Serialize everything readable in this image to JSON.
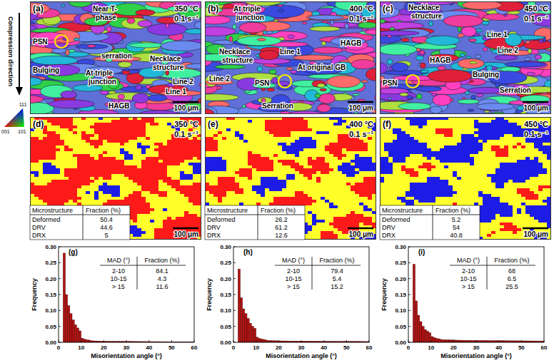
{
  "side_label": "Compression direction",
  "ipf_key": {
    "top": "111",
    "left": "001",
    "right": "101"
  },
  "orientation_maps": [
    {
      "letter": "(a)",
      "temperature": "350 °C",
      "strain_rate": "0.1 s⁻¹",
      "scale_bar": "100 μm",
      "annotations": [
        {
          "lines": [
            "Near T-",
            "phase"
          ]
        },
        {
          "lines": [
            "PSN"
          ]
        },
        {
          "lines": [
            "serration"
          ]
        },
        {
          "lines": [
            "Bulging"
          ]
        },
        {
          "lines": [
            "At triple",
            "junction"
          ]
        },
        {
          "lines": [
            "Necklace",
            "structure"
          ]
        },
        {
          "lines": [
            "Line 2"
          ]
        },
        {
          "lines": [
            "Line 1"
          ]
        },
        {
          "lines": [
            "HAGB"
          ]
        }
      ]
    },
    {
      "letter": "(b)",
      "temperature": "400 °C",
      "strain_rate": "0.1 s⁻¹",
      "scale_bar": "100 μm",
      "annotations": [
        {
          "lines": [
            "At triple",
            "junction"
          ]
        },
        {
          "lines": [
            "Necklace",
            "structure"
          ]
        },
        {
          "lines": [
            "Line 1"
          ]
        },
        {
          "lines": [
            "HAGB"
          ]
        },
        {
          "lines": [
            "Line 2"
          ]
        },
        {
          "lines": [
            "PSN"
          ]
        },
        {
          "lines": [
            "At original GB"
          ]
        },
        {
          "lines": [
            "Serration"
          ]
        }
      ]
    },
    {
      "letter": "(c)",
      "temperature": "450 °C",
      "strain_rate": "0.1 s⁻¹",
      "scale_bar": "100 μm",
      "annotations": [
        {
          "lines": [
            "Necklace",
            "structure"
          ]
        },
        {
          "lines": [
            "Line 1"
          ]
        },
        {
          "lines": [
            "Line 2"
          ]
        },
        {
          "lines": [
            "HAGB"
          ]
        },
        {
          "lines": [
            "Bulging"
          ]
        },
        {
          "lines": [
            "Serration"
          ]
        },
        {
          "lines": [
            "PSN"
          ]
        }
      ]
    }
  ],
  "phase_maps": [
    {
      "letter": "(d)",
      "temperature": "350 °C",
      "strain_rate": "0.1 s⁻¹",
      "scale_bar": "100 μm",
      "table": {
        "header": [
          "Microstructure",
          "Fraction (%)"
        ],
        "rows": [
          [
            "Deformed",
            50.4
          ],
          [
            "DRV",
            44.6
          ],
          [
            "DRX",
            5
          ]
        ]
      }
    },
    {
      "letter": "(e)",
      "temperature": "400 °C",
      "strain_rate": "0.1 s⁻¹",
      "scale_bar": "100 μm",
      "table": {
        "header": [
          "Microstructure",
          "Fraction (%)"
        ],
        "rows": [
          [
            "Deformed",
            26.2
          ],
          [
            "DRV",
            61.2
          ],
          [
            "DRX",
            12.6
          ]
        ]
      }
    },
    {
      "letter": "(f)",
      "temperature": "450 °C",
      "strain_rate": "0.1 s⁻¹",
      "scale_bar": "100 μm",
      "table": {
        "header": [
          "Microstructure",
          "Fraction (%)"
        ],
        "rows": [
          [
            "Deformed",
            5.2
          ],
          [
            "DRV",
            54
          ],
          [
            "DRX",
            40.8
          ]
        ]
      }
    }
  ],
  "chart_data": [
    {
      "type": "histogram",
      "title": "(g)",
      "x_label": "Misorientation angle (°)",
      "y_label": "Frequency",
      "color": "#b01212",
      "grid": false,
      "bins": [
        2,
        3,
        4,
        5,
        6,
        7,
        8,
        9,
        10,
        11,
        12,
        13,
        14,
        15,
        16,
        17,
        18,
        19,
        20,
        21,
        22,
        23,
        24,
        25,
        26,
        27,
        28,
        29,
        30,
        31,
        32,
        33,
        34,
        35,
        36,
        37,
        38,
        39,
        40,
        41,
        42,
        43,
        44,
        45,
        46,
        47,
        48,
        49,
        50,
        51,
        52,
        53,
        54,
        55,
        56,
        57,
        58,
        59,
        60
      ],
      "counts": [
        0.28,
        0.15,
        0.115,
        0.09,
        0.07,
        0.055,
        0.045,
        0.036,
        0.013,
        0.01,
        0.008,
        0.007,
        0.005,
        0.0045,
        0.0043,
        0.0041,
        0.0039,
        0.0037,
        0.0035,
        0.0034,
        0.0033,
        0.0032,
        0.0031,
        0.003,
        0.003,
        0.0029,
        0.0029,
        0.0028,
        0.0028,
        0.0027,
        0.0027,
        0.0026,
        0.0026,
        0.0025,
        0.0025,
        0.0024,
        0.0024,
        0.0023,
        0.0023,
        0.0022,
        0.0022,
        0.0021,
        0.0021,
        0.002,
        0.002,
        0.002,
        0.0019,
        0.0019,
        0.0019,
        0.0018,
        0.0018,
        0.0018,
        0.0017,
        0.0017,
        0.0016,
        0.0016,
        0.0015,
        0.0015
      ],
      "xlim": [
        0,
        60
      ],
      "ylim": [
        0,
        0.3
      ],
      "xticks": [
        0,
        10,
        20,
        30,
        40,
        50,
        60
      ],
      "yticks": [
        {
          "value": 0,
          "label": "0.00"
        },
        {
          "value": 0.05,
          "label": "0.05"
        },
        {
          "value": 0.1,
          "label": "0.10"
        },
        {
          "value": 0.15,
          "label": "0.15"
        },
        {
          "value": 0.2,
          "label": "0.20"
        },
        {
          "value": 0.25,
          "label": "0.25"
        },
        {
          "value": 0.3,
          "label": "0.30"
        }
      ],
      "table": {
        "header": [
          "MAD (°)",
          "Fraction (%)"
        ],
        "rows": [
          [
            "2-10",
            84.1
          ],
          [
            "10-15",
            4.3
          ],
          [
            "> 15",
            11.6
          ]
        ]
      }
    },
    {
      "type": "histogram",
      "title": "(h)",
      "x_label": "Misorientation angle (°)",
      "y_label": "Frequency",
      "color": "#b01212",
      "grid": false,
      "bins": [
        2,
        3,
        4,
        5,
        6,
        7,
        8,
        9,
        10,
        11,
        12,
        13,
        14,
        15,
        16,
        17,
        18,
        19,
        20,
        21,
        22,
        23,
        24,
        25,
        26,
        27,
        28,
        29,
        30,
        31,
        32,
        33,
        34,
        35,
        36,
        37,
        38,
        39,
        40,
        41,
        42,
        43,
        44,
        45,
        46,
        47,
        48,
        49,
        50,
        51,
        52,
        53,
        54,
        55,
        56,
        57,
        58,
        59,
        60
      ],
      "counts": [
        0.23,
        0.14,
        0.105,
        0.09,
        0.075,
        0.06,
        0.05,
        0.044,
        0.016,
        0.012,
        0.01,
        0.009,
        0.007,
        0.0055,
        0.0053,
        0.0051,
        0.0049,
        0.0047,
        0.0045,
        0.0044,
        0.0043,
        0.0042,
        0.0041,
        0.004,
        0.004,
        0.0039,
        0.0039,
        0.0038,
        0.0038,
        0.0037,
        0.0037,
        0.0036,
        0.0036,
        0.0035,
        0.0035,
        0.0034,
        0.0034,
        0.0033,
        0.0033,
        0.0032,
        0.0032,
        0.0031,
        0.0031,
        0.003,
        0.003,
        0.003,
        0.0029,
        0.0029,
        0.0029,
        0.0028,
        0.0028,
        0.0028,
        0.0027,
        0.0027,
        0.0026,
        0.0026,
        0.0025,
        0.0025
      ],
      "xlim": [
        0,
        60
      ],
      "ylim": [
        0,
        0.3
      ],
      "xticks": [
        0,
        10,
        20,
        30,
        40,
        50,
        60
      ],
      "yticks": [
        {
          "value": 0,
          "label": "0.00"
        },
        {
          "value": 0.05,
          "label": "0.05"
        },
        {
          "value": 0.1,
          "label": "0.10"
        },
        {
          "value": 0.15,
          "label": "0.15"
        },
        {
          "value": 0.2,
          "label": "0.20"
        },
        {
          "value": 0.25,
          "label": "0.25"
        },
        {
          "value": 0.3,
          "label": "0.30"
        }
      ],
      "table": {
        "header": [
          "MAD (°)",
          "Fraction (%)"
        ],
        "rows": [
          [
            "2-10",
            79.4
          ],
          [
            "10-15",
            5.4
          ],
          [
            "> 15",
            15.2
          ]
        ]
      }
    },
    {
      "type": "histogram",
      "title": "(i)",
      "x_label": "Misorientation angle (°)",
      "y_label": "Frequency",
      "color": "#b01212",
      "grid": false,
      "bins": [
        2,
        3,
        4,
        5,
        6,
        7,
        8,
        9,
        10,
        11,
        12,
        13,
        14,
        15,
        16,
        17,
        18,
        19,
        20,
        21,
        22,
        23,
        24,
        25,
        26,
        27,
        28,
        29,
        30,
        31,
        32,
        33,
        34,
        35,
        36,
        37,
        38,
        39,
        40,
        41,
        42,
        43,
        44,
        45,
        46,
        47,
        48,
        49,
        50,
        51,
        52,
        53,
        54,
        55,
        56,
        57,
        58,
        59,
        60
      ],
      "counts": [
        0.245,
        0.13,
        0.085,
        0.065,
        0.05,
        0.04,
        0.035,
        0.03,
        0.018,
        0.015,
        0.012,
        0.011,
        0.009,
        0.008,
        0.0078,
        0.0076,
        0.0074,
        0.0072,
        0.007,
        0.0068,
        0.0066,
        0.0065,
        0.0064,
        0.0063,
        0.0062,
        0.0061,
        0.006,
        0.0059,
        0.0058,
        0.0057,
        0.0056,
        0.0055,
        0.0054,
        0.0053,
        0.0053,
        0.0052,
        0.0052,
        0.0051,
        0.0051,
        0.005,
        0.005,
        0.0049,
        0.0049,
        0.0048,
        0.0048,
        0.0047,
        0.0047,
        0.0046,
        0.0046,
        0.0045,
        0.0045,
        0.0044,
        0.0044,
        0.0043,
        0.0043,
        0.0042,
        0.0042,
        0.0041
      ],
      "xlim": [
        0,
        60
      ],
      "ylim": [
        0,
        0.3
      ],
      "xticks": [
        0,
        10,
        20,
        30,
        40,
        50,
        60
      ],
      "yticks": [
        {
          "value": 0,
          "label": "0.00"
        },
        {
          "value": 0.05,
          "label": "0.05"
        },
        {
          "value": 0.1,
          "label": "0.10"
        },
        {
          "value": 0.15,
          "label": "0.15"
        },
        {
          "value": 0.2,
          "label": "0.20"
        },
        {
          "value": 0.25,
          "label": "0.25"
        },
        {
          "value": 0.3,
          "label": "0.30"
        }
      ],
      "table": {
        "header": [
          "MAD (°)",
          "Fraction (%)"
        ],
        "rows": [
          [
            "2-10",
            68
          ],
          [
            "10-15",
            6.5
          ],
          [
            "> 15",
            25.5
          ]
        ]
      }
    }
  ]
}
